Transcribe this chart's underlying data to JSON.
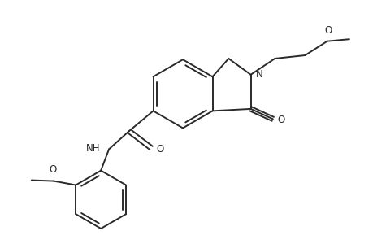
{
  "bg_color": "#ffffff",
  "line_color": "#2a2a2a",
  "line_width": 1.4,
  "font_size": 8.5,
  "fig_width": 4.6,
  "fig_height": 3.0,
  "dpi": 100,
  "xlim": [
    0,
    9.2
  ],
  "ylim": [
    0,
    6.0
  ]
}
